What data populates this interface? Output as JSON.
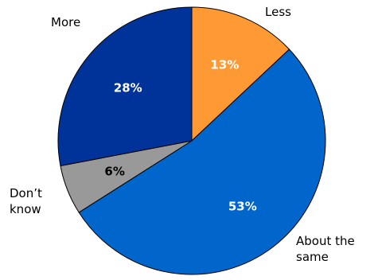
{
  "chart_data": {
    "type": "pie",
    "slices": [
      {
        "label": "Less",
        "value": 13,
        "display": "13%",
        "color": "#FF9933",
        "label_color": "#ffffff"
      },
      {
        "label": "About the same",
        "value": 53,
        "display": "53%",
        "color": "#0066CC",
        "label_color": "#ffffff"
      },
      {
        "label": "Don’t know",
        "value": 6,
        "display": "6%",
        "color": "#999999",
        "label_color": "#000000"
      },
      {
        "label": "More",
        "value": 28,
        "display": "28%",
        "color": "#003399",
        "label_color": "#ffffff"
      }
    ],
    "start": "12 o'clock",
    "direction": "clockwise",
    "slice_border_color": "#000000",
    "legend": "none"
  }
}
